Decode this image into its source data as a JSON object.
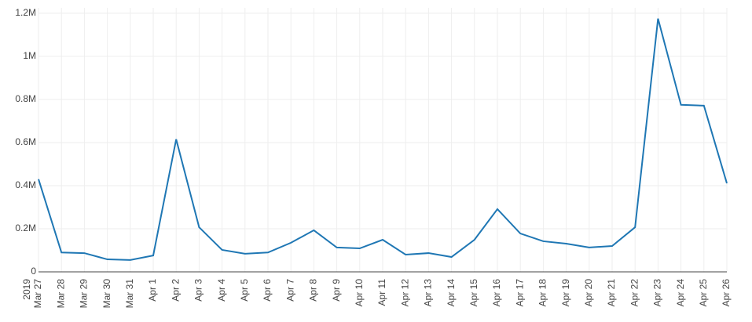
{
  "chart_data": {
    "type": "line",
    "x": [
      "2019-03-27",
      "2019-03-28",
      "2019-03-29",
      "2019-03-30",
      "2019-03-31",
      "2019-04-01",
      "2019-04-02",
      "2019-04-03",
      "2019-04-04",
      "2019-04-05",
      "2019-04-06",
      "2019-04-07",
      "2019-04-08",
      "2019-04-09",
      "2019-04-10",
      "2019-04-11",
      "2019-04-12",
      "2019-04-13",
      "2019-04-14",
      "2019-04-15",
      "2019-04-16",
      "2019-04-17",
      "2019-04-18",
      "2019-04-19",
      "2019-04-20",
      "2019-04-21",
      "2019-04-22",
      "2019-04-23",
      "2019-04-24",
      "2019-04-25",
      "2019-04-26"
    ],
    "series": [
      {
        "color": "#1f77b4",
        "values": [
          430000,
          90000,
          87000,
          58000,
          55000,
          76000,
          615000,
          207000,
          102000,
          84000,
          90000,
          135000,
          193000,
          113000,
          109000,
          149000,
          80000,
          87000,
          69000,
          149000,
          291000,
          178000,
          142000,
          131000,
          113000,
          120000,
          207000,
          1175000,
          775000,
          771000,
          411000
        ]
      }
    ],
    "xlim": [
      "2019-03-27",
      "2019-04-26"
    ],
    "xticks": [
      {
        "value": "2019-03-27",
        "label": "Mar 27",
        "year": "2019"
      },
      {
        "value": "2019-03-28",
        "label": "Mar 28"
      },
      {
        "value": "2019-03-29",
        "label": "Mar 29"
      },
      {
        "value": "2019-03-30",
        "label": "Mar 30"
      },
      {
        "value": "2019-03-31",
        "label": "Mar 31"
      },
      {
        "value": "2019-04-01",
        "label": "Apr 1"
      },
      {
        "value": "2019-04-02",
        "label": "Apr 2"
      },
      {
        "value": "2019-04-03",
        "label": "Apr 3"
      },
      {
        "value": "2019-04-04",
        "label": "Apr 4"
      },
      {
        "value": "2019-04-05",
        "label": "Apr 5"
      },
      {
        "value": "2019-04-06",
        "label": "Apr 6"
      },
      {
        "value": "2019-04-07",
        "label": "Apr 7"
      },
      {
        "value": "2019-04-08",
        "label": "Apr 8"
      },
      {
        "value": "2019-04-09",
        "label": "Apr 9"
      },
      {
        "value": "2019-04-10",
        "label": "Apr 10"
      },
      {
        "value": "2019-04-11",
        "label": "Apr 11"
      },
      {
        "value": "2019-04-12",
        "label": "Apr 12"
      },
      {
        "value": "2019-04-13",
        "label": "Apr 13"
      },
      {
        "value": "2019-04-14",
        "label": "Apr 14"
      },
      {
        "value": "2019-04-15",
        "label": "Apr 15"
      },
      {
        "value": "2019-04-16",
        "label": "Apr 16"
      },
      {
        "value": "2019-04-17",
        "label": "Apr 17"
      },
      {
        "value": "2019-04-18",
        "label": "Apr 18"
      },
      {
        "value": "2019-04-19",
        "label": "Apr 19"
      },
      {
        "value": "2019-04-20",
        "label": "Apr 20"
      },
      {
        "value": "2019-04-21",
        "label": "Apr 21"
      },
      {
        "value": "2019-04-22",
        "label": "Apr 22"
      },
      {
        "value": "2019-04-23",
        "label": "Apr 23"
      },
      {
        "value": "2019-04-24",
        "label": "Apr 24"
      },
      {
        "value": "2019-04-25",
        "label": "Apr 25"
      },
      {
        "value": "2019-04-26",
        "label": "Apr 26"
      }
    ],
    "ylim": [
      0,
      1225000
    ],
    "yticks": [
      0,
      {
        "value": 200000,
        "label": "0.2M"
      },
      {
        "value": 400000,
        "label": "0.4M"
      },
      {
        "value": 600000,
        "label": "0.6M"
      },
      {
        "value": 800000,
        "label": "0.8M"
      },
      {
        "value": 1000000,
        "label": "1M"
      },
      {
        "value": 1200000,
        "label": "1.2M"
      }
    ],
    "grid": true
  }
}
